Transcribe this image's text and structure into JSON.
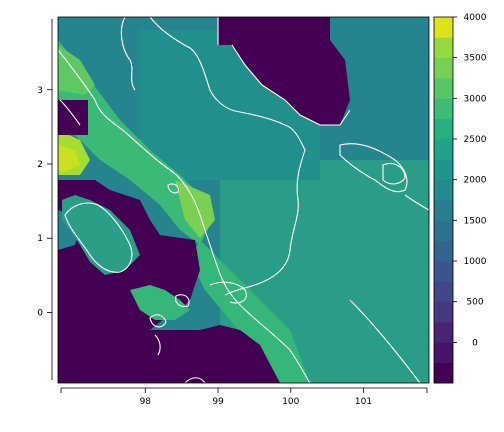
{
  "map": {
    "x_ticks": [
      98,
      99,
      100,
      101
    ],
    "y_ticks": [
      0,
      1,
      2,
      3
    ],
    "x_range": [
      96.8,
      101.9
    ],
    "y_range": [
      -0.95,
      3.98
    ],
    "coastline_color": "#ffffff",
    "grid_colors": {
      "deep": "#440154",
      "low": "#414487",
      "mid_low": "#2a788e",
      "mid": "#22a884",
      "mid_high": "#35b779",
      "high": "#7ad151",
      "peak": "#fde725"
    }
  },
  "colorbar": {
    "tick_labels": [
      "0",
      "500",
      "1000",
      "1500",
      "2000",
      "2500",
      "3000",
      "3500",
      "4000"
    ],
    "min": -500,
    "max": 4000,
    "steps": 18,
    "colors": [
      "#440154",
      "#481467",
      "#482576",
      "#453781",
      "#3f4788",
      "#39558c",
      "#32658e",
      "#2d718e",
      "#287d8e",
      "#238a8d",
      "#1f968b",
      "#20a386",
      "#29af7f",
      "#3cbc75",
      "#56c667",
      "#75d054",
      "#95d840",
      "#dce318"
    ]
  }
}
